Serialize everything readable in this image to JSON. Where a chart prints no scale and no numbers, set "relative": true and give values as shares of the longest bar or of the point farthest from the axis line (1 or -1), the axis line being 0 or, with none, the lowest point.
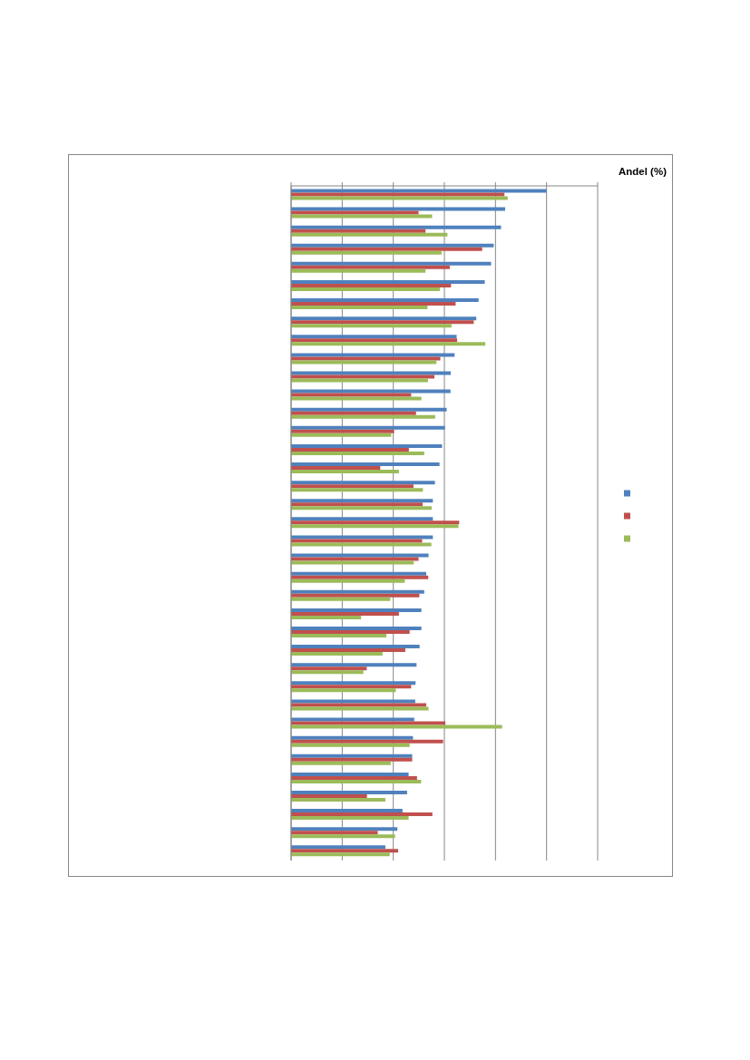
{
  "chart_data": {
    "type": "bar",
    "orientation": "horizontal",
    "relative": true,
    "annotations": [
      "Andel (%)"
    ],
    "categories": [
      null,
      null,
      null,
      null,
      null,
      null,
      null,
      null,
      null,
      null,
      null,
      null,
      null,
      null,
      null,
      null,
      null,
      null,
      null,
      null,
      null,
      null,
      null,
      null,
      null,
      null,
      null,
      null,
      null,
      null,
      null,
      null,
      null,
      null,
      null,
      null,
      null
    ],
    "series": [
      {
        "color": "#4f81bd",
        "values": [
          1.0,
          0.838,
          0.822,
          0.793,
          0.783,
          0.758,
          0.734,
          0.725,
          0.648,
          0.64,
          0.625,
          0.624,
          0.609,
          0.602,
          0.591,
          0.581,
          0.563,
          0.555,
          0.555,
          0.555,
          0.538,
          0.529,
          0.521,
          0.51,
          0.51,
          0.503,
          0.491,
          0.487,
          0.486,
          0.482,
          0.477,
          0.474,
          0.46,
          0.454,
          0.436,
          0.416,
          0.369
        ]
      },
      {
        "color": "#c0504d",
        "values": [
          0.835,
          0.499,
          0.526,
          0.748,
          0.621,
          0.626,
          0.644,
          0.715,
          0.65,
          0.584,
          0.561,
          0.47,
          0.489,
          0.403,
          0.461,
          0.349,
          0.479,
          0.515,
          0.658,
          0.513,
          0.499,
          0.537,
          0.502,
          0.422,
          0.464,
          0.447,
          0.296,
          0.47,
          0.529,
          0.604,
          0.595,
          0.474,
          0.493,
          0.297,
          0.553,
          0.339,
          0.419
        ]
      },
      {
        "color": "#9bbb59",
        "values": [
          0.848,
          0.552,
          0.612,
          0.589,
          0.526,
          0.583,
          0.534,
          0.628,
          0.76,
          0.569,
          0.536,
          0.51,
          0.564,
          0.392,
          0.521,
          0.422,
          0.516,
          0.55,
          0.655,
          0.549,
          0.48,
          0.445,
          0.388,
          0.274,
          0.373,
          0.358,
          0.283,
          0.41,
          0.538,
          0.826,
          0.464,
          0.39,
          0.509,
          0.369,
          0.46,
          0.407,
          0.386
        ]
      }
    ],
    "grid": "x"
  }
}
